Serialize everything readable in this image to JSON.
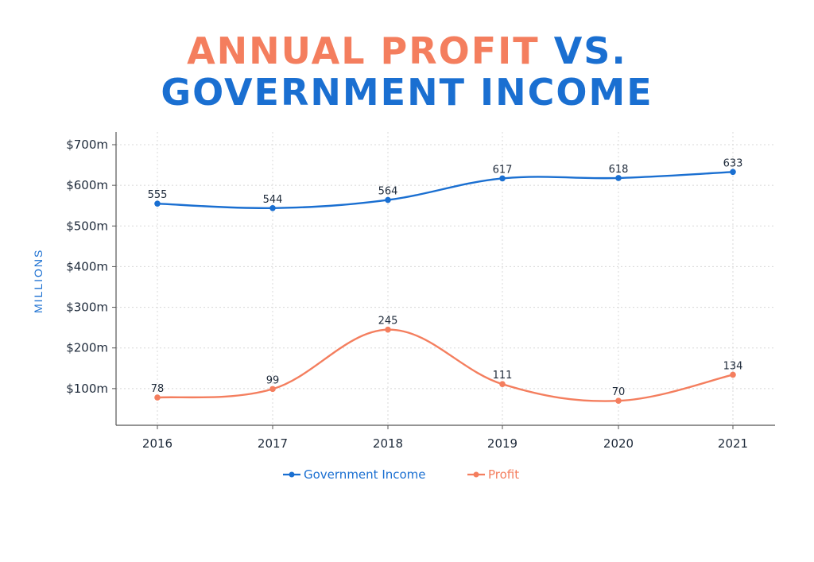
{
  "title": {
    "part1": "ANNUAL PROFIT",
    "part2": "VS.",
    "line2": "GOVERNMENT INCOME"
  },
  "colors": {
    "government": "#1a6fd1",
    "profit": "#f47e5e",
    "axis": "#555555",
    "grid": "#d8d8d8",
    "text": "#1e2a3a"
  },
  "chart_data": {
    "type": "line",
    "ylabel": "MILLIONS",
    "xlabel": "",
    "categories": [
      "2016",
      "2017",
      "2018",
      "2019",
      "2020",
      "2021"
    ],
    "ylim": [
      0,
      700
    ],
    "yticks": [
      100,
      200,
      300,
      400,
      500,
      600,
      700
    ],
    "ytick_labels": [
      "$100m",
      "$200m",
      "$300m",
      "$400m",
      "$500m",
      "$600m",
      "$700m"
    ],
    "grid": true,
    "legend_position": "bottom",
    "series": [
      {
        "name": "Government Income",
        "values": [
          555,
          544,
          564,
          617,
          618,
          633
        ],
        "labels": [
          "555",
          "544",
          "564",
          "617",
          "618",
          "633"
        ]
      },
      {
        "name": "Profit",
        "values": [
          78,
          99,
          245,
          111,
          70,
          134
        ],
        "labels": [
          "78",
          "99",
          "245",
          "111",
          "70",
          "134"
        ]
      }
    ]
  }
}
